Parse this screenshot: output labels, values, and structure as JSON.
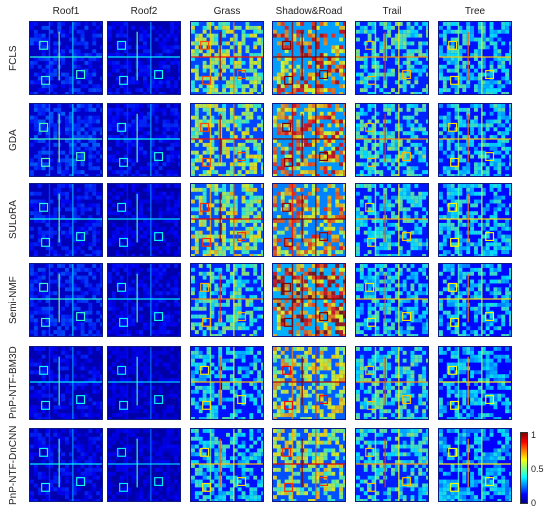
{
  "columns": [
    "Roof1",
    "Roof2",
    "Grass",
    "Shadow&Road",
    "Trail",
    "Tree"
  ],
  "rows": [
    "FCLS",
    "GDA",
    "SULoRA",
    "Semi-NMF",
    "PnP-NTF-BM3D",
    "PnP-NTF-DnCNN"
  ],
  "colorbar": {
    "ticks": [
      "1",
      "0.5",
      "0"
    ]
  },
  "intensity": {
    "comment_free": true,
    "levels": [
      [
        0.18,
        0.14,
        0.55,
        0.8,
        0.45,
        0.4
      ],
      [
        0.2,
        0.15,
        0.55,
        0.78,
        0.45,
        0.4
      ],
      [
        0.16,
        0.12,
        0.58,
        0.72,
        0.42,
        0.38
      ],
      [
        0.18,
        0.13,
        0.45,
        0.85,
        0.4,
        0.38
      ],
      [
        0.14,
        0.11,
        0.4,
        0.62,
        0.44,
        0.36
      ],
      [
        0.14,
        0.11,
        0.4,
        0.58,
        0.44,
        0.36
      ]
    ]
  }
}
